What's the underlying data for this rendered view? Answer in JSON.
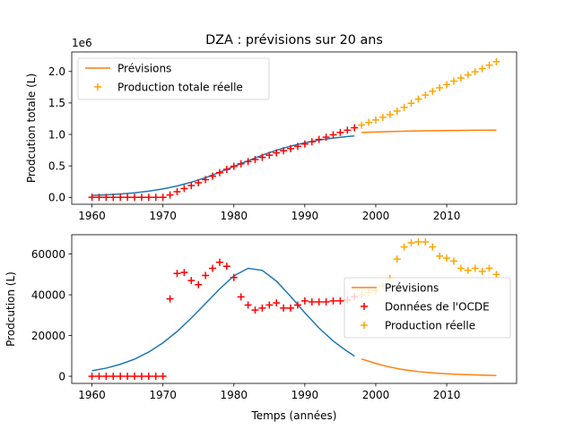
{
  "figure_title": "DZA : prévisions sur 20 ans",
  "colors": {
    "fit": "#1f77b4",
    "forecast": "#ff7f0e",
    "oecd": "#ff0000",
    "real": "#ffa500",
    "axes": "#000000",
    "legend_border": "#cccccc"
  },
  "chart_data": [
    {
      "type": "line",
      "title": "DZA : prévisions sur 20 ans",
      "xlabel": "",
      "ylabel": "Prodcution totale (L)",
      "scale_label": "1e6",
      "xlim": [
        1957.15,
        2019.85
      ],
      "ylim": [
        -110000,
        2310000
      ],
      "xticks": [
        1960,
        1970,
        1980,
        1990,
        2000,
        2010
      ],
      "yticks": [
        0,
        500000,
        1000000,
        1500000,
        2000000
      ],
      "ytick_labels": [
        "0.0",
        "0.5",
        "1.0",
        "1.5",
        "2.0"
      ],
      "legend_position": "upper left",
      "legend": [
        {
          "label": "Prévisions",
          "series": "forecast",
          "marker": "line"
        },
        {
          "label": "Production totale réelle",
          "series": "real",
          "marker": "plus"
        }
      ],
      "series": [
        {
          "id": "fit",
          "style": "line",
          "x": [
            1960,
            1962,
            1964,
            1966,
            1968,
            1970,
            1972,
            1974,
            1976,
            1978,
            1980,
            1982,
            1984,
            1986,
            1988,
            1990,
            1992,
            1994,
            1996,
            1997
          ],
          "y": [
            30000,
            40000,
            53000,
            72000,
            99000,
            134000,
            180000,
            240000,
            313000,
            398000,
            490000,
            582000,
            670000,
            748000,
            814000,
            867000,
            909000,
            941000,
            966000,
            975000
          ]
        },
        {
          "id": "forecast",
          "name": "Prévisions",
          "style": "line",
          "x": [
            1998,
            2000,
            2002,
            2005,
            2008,
            2011,
            2014,
            2017
          ],
          "y": [
            1030000,
            1037000,
            1044000,
            1053000,
            1059000,
            1063000,
            1066000,
            1068000
          ]
        },
        {
          "id": "oecd",
          "style": "plus",
          "x": [
            1960,
            1961,
            1962,
            1963,
            1964,
            1965,
            1966,
            1967,
            1968,
            1969,
            1970,
            1971,
            1972,
            1973,
            1974,
            1975,
            1976,
            1977,
            1978,
            1979,
            1980,
            1981,
            1982,
            1983,
            1984,
            1985,
            1986,
            1987,
            1988,
            1989,
            1990,
            1991,
            1992,
            1993,
            1994,
            1995,
            1996,
            1997
          ],
          "y": [
            0,
            0,
            0,
            0,
            0,
            0,
            0,
            0,
            0,
            0,
            0,
            38000,
            89000,
            140000,
            187000,
            232000,
            282000,
            336000,
            392000,
            446000,
            494000,
            533000,
            568000,
            600000,
            635000,
            670000,
            706000,
            740000,
            774000,
            810000,
            847000,
            883000,
            920000,
            956000,
            993000,
            1030000,
            1067000,
            1106000
          ]
        },
        {
          "id": "real",
          "name": "Production totale réelle",
          "style": "plus",
          "x": [
            1998,
            1999,
            2000,
            2001,
            2002,
            2003,
            2004,
            2005,
            2006,
            2007,
            2008,
            2009,
            2010,
            2011,
            2012,
            2013,
            2014,
            2015,
            2016,
            2017
          ],
          "y": [
            1148000,
            1190000,
            1230000,
            1270000,
            1315000,
            1370000,
            1430000,
            1495000,
            1560000,
            1625000,
            1685000,
            1740000,
            1790000,
            1845000,
            1895000,
            1945000,
            1995000,
            2045000,
            2100000,
            2155000
          ]
        }
      ]
    },
    {
      "type": "line",
      "title": "",
      "xlabel": "Temps (années)",
      "ylabel": "Prodcution (L)",
      "xlim": [
        1957.15,
        2019.85
      ],
      "ylim": [
        -3500,
        69500
      ],
      "xticks": [
        1960,
        1970,
        1980,
        1990,
        2000,
        2010
      ],
      "yticks": [
        0,
        20000,
        40000,
        60000
      ],
      "ytick_labels": [
        "0",
        "20000",
        "40000",
        "60000"
      ],
      "legend_position": "center right",
      "legend": [
        {
          "label": "Prévisions",
          "series": "forecast",
          "marker": "line"
        },
        {
          "label": "Données de l'OCDE",
          "series": "oecd",
          "marker": "plus"
        },
        {
          "label": "Production réelle",
          "series": "real",
          "marker": "plus"
        }
      ],
      "series": [
        {
          "id": "fit",
          "style": "line",
          "x": [
            1960,
            1962,
            1964,
            1966,
            1968,
            1970,
            1972,
            1974,
            1976,
            1978,
            1980,
            1982,
            1984,
            1986,
            1988,
            1990,
            1992,
            1994,
            1996,
            1997
          ],
          "y": [
            2700,
            4000,
            5900,
            8400,
            11900,
            16400,
            22000,
            28600,
            35700,
            42900,
            49300,
            53000,
            52000,
            46700,
            39200,
            31200,
            23700,
            17300,
            12200,
            9900
          ]
        },
        {
          "id": "forecast",
          "name": "Prévisions",
          "style": "line",
          "x": [
            1998,
            2000,
            2002,
            2004,
            2006,
            2008,
            2010,
            2012,
            2014,
            2016,
            2017
          ],
          "y": [
            8500,
            6300,
            4500,
            3200,
            2300,
            1650,
            1200,
            880,
            650,
            480,
            400
          ]
        },
        {
          "id": "oecd",
          "name": "Données de l'OCDE",
          "style": "plus",
          "x": [
            1960,
            1961,
            1962,
            1963,
            1964,
            1965,
            1966,
            1967,
            1968,
            1969,
            1970,
            1971,
            1972,
            1973,
            1974,
            1975,
            1976,
            1977,
            1978,
            1979,
            1980,
            1981,
            1982,
            1983,
            1984,
            1985,
            1986,
            1987,
            1988,
            1989,
            1990,
            1991,
            1992,
            1993,
            1994,
            1995,
            1996,
            1997
          ],
          "y": [
            0,
            0,
            0,
            0,
            0,
            0,
            0,
            0,
            0,
            0,
            0,
            38000,
            50500,
            51000,
            47000,
            45000,
            49500,
            53000,
            56000,
            54000,
            48500,
            39000,
            35000,
            32500,
            33500,
            35000,
            36000,
            33500,
            33500,
            35000,
            37000,
            36500,
            36500,
            36500,
            37000,
            37000,
            37500,
            39000
          ]
        },
        {
          "id": "real",
          "name": "Production réelle",
          "style": "plus",
          "x": [
            1998,
            1999,
            2000,
            2001,
            2002,
            2003,
            2004,
            2005,
            2006,
            2007,
            2008,
            2009,
            2010,
            2011,
            2012,
            2013,
            2014,
            2015,
            2016,
            2017
          ],
          "y": [
            40000,
            41000,
            42000,
            44500,
            48000,
            57500,
            63500,
            65500,
            66000,
            66000,
            63500,
            59000,
            58000,
            56500,
            53000,
            52000,
            53000,
            51500,
            53000,
            50000
          ]
        }
      ]
    }
  ]
}
